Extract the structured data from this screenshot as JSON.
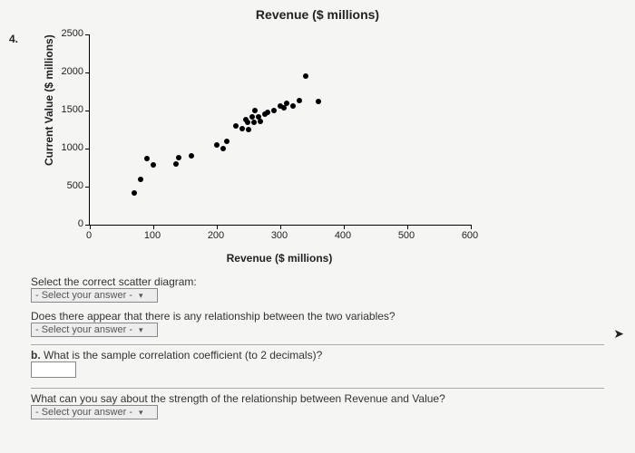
{
  "question_number": "4.",
  "top_title": "Revenue ($ millions)",
  "scatter": {
    "type": "scatter",
    "x_label": "Revenue ($ millions)",
    "y_label": "Current Value ($ millions)",
    "xlim": [
      0,
      600
    ],
    "ylim": [
      0,
      2500
    ],
    "x_ticks": [
      0,
      100,
      200,
      300,
      400,
      500,
      600
    ],
    "y_ticks": [
      0,
      500,
      1000,
      1500,
      2000,
      2500
    ],
    "tick_fontsize": 11,
    "label_fontsize": 12,
    "marker_color": "#000000",
    "marker_size_px": 6,
    "background_color": "#f5f5f3",
    "axis_color": "#000000",
    "points": [
      [
        70,
        420
      ],
      [
        80,
        600
      ],
      [
        90,
        870
      ],
      [
        100,
        780
      ],
      [
        135,
        800
      ],
      [
        140,
        880
      ],
      [
        160,
        900
      ],
      [
        200,
        1050
      ],
      [
        210,
        1000
      ],
      [
        215,
        1100
      ],
      [
        230,
        1300
      ],
      [
        240,
        1260
      ],
      [
        245,
        1380
      ],
      [
        248,
        1350
      ],
      [
        250,
        1250
      ],
      [
        255,
        1420
      ],
      [
        258,
        1340
      ],
      [
        260,
        1500
      ],
      [
        265,
        1420
      ],
      [
        268,
        1360
      ],
      [
        275,
        1450
      ],
      [
        280,
        1480
      ],
      [
        290,
        1500
      ],
      [
        300,
        1560
      ],
      [
        305,
        1540
      ],
      [
        310,
        1600
      ],
      [
        320,
        1560
      ],
      [
        330,
        1630
      ],
      [
        340,
        1950
      ],
      [
        360,
        1620
      ]
    ]
  },
  "questions": {
    "q1": {
      "prompt": "Select the correct scatter diagram:",
      "placeholder": "- Select your answer -"
    },
    "q2": {
      "prompt": "Does there appear that there is any relationship between the two variables?",
      "placeholder": "- Select your answer -"
    },
    "q3": {
      "label": "b.",
      "prompt": "What is the sample correlation coefficient (to 2 decimals)?"
    },
    "q4": {
      "prompt": "What can you say about the strength of the relationship between Revenue and Value?",
      "placeholder": "- Select your answer -"
    }
  },
  "cursor_icon": "➤"
}
